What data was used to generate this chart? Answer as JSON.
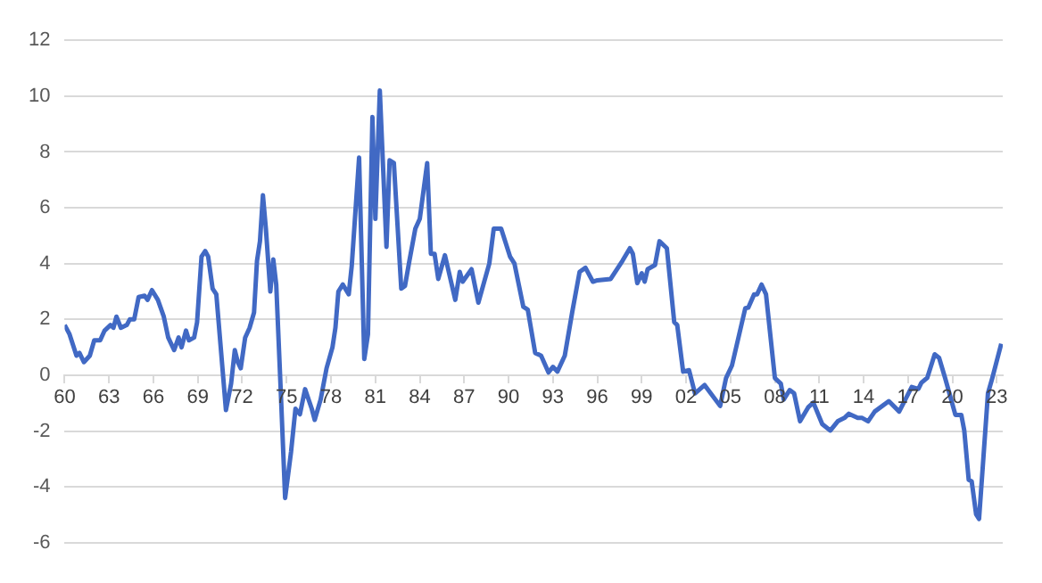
{
  "chart_data": {
    "type": "line",
    "grid": "y",
    "legend": false,
    "marker": "none",
    "line_style": "solid",
    "xlim": [
      1960,
      2023.4
    ],
    "ylim": [
      -6,
      12
    ],
    "yticks": [
      -6,
      -4,
      -2,
      0,
      2,
      4,
      6,
      8,
      10,
      12
    ],
    "xticks": [
      {
        "value": 1960,
        "label": "60"
      },
      {
        "value": 1963,
        "label": "63"
      },
      {
        "value": 1966,
        "label": "66"
      },
      {
        "value": 1969,
        "label": "69"
      },
      {
        "value": 1972,
        "label": "72"
      },
      {
        "value": 1975,
        "label": "75"
      },
      {
        "value": 1978,
        "label": "78"
      },
      {
        "value": 1981,
        "label": "81"
      },
      {
        "value": 1984,
        "label": "84"
      },
      {
        "value": 1987,
        "label": "87"
      },
      {
        "value": 1990,
        "label": "90"
      },
      {
        "value": 1993,
        "label": "93"
      },
      {
        "value": 1996,
        "label": "96"
      },
      {
        "value": 1999,
        "label": "99"
      },
      {
        "value": 2002,
        "label": "02"
      },
      {
        "value": 2005,
        "label": "05"
      },
      {
        "value": 2008,
        "label": "08"
      },
      {
        "value": 2011,
        "label": "11"
      },
      {
        "value": 2014,
        "label": "14"
      },
      {
        "value": 2017,
        "label": "17"
      },
      {
        "value": 2020,
        "label": "20"
      },
      {
        "value": 2023,
        "label": "23"
      }
    ],
    "series": [
      {
        "color": "#4169c4",
        "x": [
          1960,
          1960.33,
          1960.8,
          1961,
          1961.3,
          1961.7,
          1962,
          1962.4,
          1962.7,
          1963.1,
          1963.3,
          1963.5,
          1963.8,
          1964.2,
          1964.4,
          1964.7,
          1965,
          1965.4,
          1965.6,
          1965.9,
          1966.3,
          1966.7,
          1967,
          1967.4,
          1967.7,
          1967.9,
          1968.2,
          1968.4,
          1968.75,
          1968.95,
          1969.25,
          1969.5,
          1969.7,
          1970,
          1970.25,
          1970.9,
          1971.25,
          1971.5,
          1971.7,
          1971.9,
          1972.2,
          1972.5,
          1972.8,
          1973,
          1973.2,
          1973.4,
          1973.6,
          1973.9,
          1974.1,
          1974.3,
          1974.6,
          1974.9,
          1975.3,
          1975.6,
          1975.9,
          1976.25,
          1976.7,
          1976.9,
          1977.3,
          1977.7,
          1978.1,
          1978.3,
          1978.5,
          1978.8,
          1979.2,
          1979.4,
          1979.9,
          1980.25,
          1980.5,
          1980.8,
          1981,
          1981.3,
          1981.75,
          1981.96,
          1982.25,
          1982.75,
          1983,
          1983.3,
          1983.7,
          1984,
          1984.5,
          1984.75,
          1985,
          1985.25,
          1985.7,
          1986.4,
          1986.7,
          1986.9,
          1987.5,
          1987.96,
          1988.7,
          1989,
          1989.5,
          1990.1,
          1990.4,
          1991,
          1991.3,
          1991.8,
          1992.2,
          1992.7,
          1993,
          1993.3,
          1993.8,
          1994.3,
          1994.8,
          1995.2,
          1995.7,
          1996,
          1996.9,
          1997.7,
          1998.2,
          1998.4,
          1998.7,
          1999,
          1999.2,
          1999.4,
          1999.9,
          2000.2,
          2000.7,
          2001.2,
          2001.4,
          2001.8,
          2002.2,
          2002.6,
          2003.25,
          2004.3,
          2004.7,
          2005.1,
          2006,
          2006.2,
          2006.6,
          2006.8,
          2007.1,
          2007.4,
          2008,
          2008.4,
          2008.6,
          2009,
          2009.3,
          2009.7,
          2010.25,
          2010.6,
          2011.2,
          2011.75,
          2012.25,
          2012.7,
          2013,
          2013.6,
          2013.9,
          2014.3,
          2014.75,
          2015.7,
          2016.4,
          2017.25,
          2017.7,
          2017.9,
          2018.3,
          2018.8,
          2019.1,
          2019.5,
          2020.2,
          2020.6,
          2020.8,
          2021.1,
          2021.3,
          2021.6,
          2021.8,
          2022.4,
          2022.7,
          2023.3
        ],
        "values": [
          1.8,
          1.47,
          0.7,
          0.8,
          0.47,
          0.7,
          1.25,
          1.25,
          1.6,
          1.8,
          1.7,
          2.1,
          1.7,
          1.8,
          2.0,
          2.0,
          2.8,
          2.85,
          2.7,
          3.05,
          2.7,
          2.1,
          1.35,
          0.9,
          1.35,
          1.0,
          1.6,
          1.25,
          1.35,
          1.9,
          4.25,
          4.45,
          4.25,
          3.1,
          2.9,
          -1.25,
          -0.3,
          0.9,
          0.47,
          0.25,
          1.35,
          1.7,
          2.25,
          4.1,
          4.8,
          6.45,
          5.25,
          3.0,
          4.15,
          3.25,
          -0.5,
          -4.4,
          -2.75,
          -1.2,
          -1.4,
          -0.5,
          -1.2,
          -1.6,
          -0.87,
          0.25,
          1.0,
          1.7,
          3.0,
          3.25,
          2.9,
          3.9,
          7.8,
          0.58,
          1.47,
          9.25,
          5.6,
          10.2,
          4.6,
          7.7,
          7.6,
          3.1,
          3.2,
          4.1,
          5.25,
          5.6,
          7.6,
          4.35,
          4.35,
          3.45,
          4.3,
          2.7,
          3.7,
          3.35,
          3.8,
          2.6,
          4.0,
          5.25,
          5.25,
          4.25,
          4.0,
          2.45,
          2.35,
          0.8,
          0.7,
          0.1,
          0.3,
          0.13,
          0.7,
          2.25,
          3.7,
          3.85,
          3.35,
          3.4,
          3.45,
          4.1,
          4.55,
          4.35,
          3.3,
          3.65,
          3.35,
          3.8,
          3.95,
          4.8,
          4.55,
          1.9,
          1.8,
          0.13,
          0.18,
          -0.65,
          -0.35,
          -1.1,
          -0.1,
          0.35,
          2.4,
          2.42,
          2.9,
          2.9,
          3.25,
          2.9,
          -0.1,
          -0.3,
          -0.87,
          -0.53,
          -0.65,
          -1.65,
          -1.15,
          -0.98,
          -1.75,
          -1.98,
          -1.65,
          -1.53,
          -1.38,
          -1.53,
          -1.53,
          -1.65,
          -1.3,
          -0.93,
          -1.3,
          -0.42,
          -0.49,
          -0.27,
          -0.09,
          0.75,
          0.62,
          -0.09,
          -1.42,
          -1.42,
          -1.98,
          -3.75,
          -3.8,
          -4.98,
          -5.15,
          -0.65,
          -0.09,
          1.13
        ]
      }
    ]
  }
}
